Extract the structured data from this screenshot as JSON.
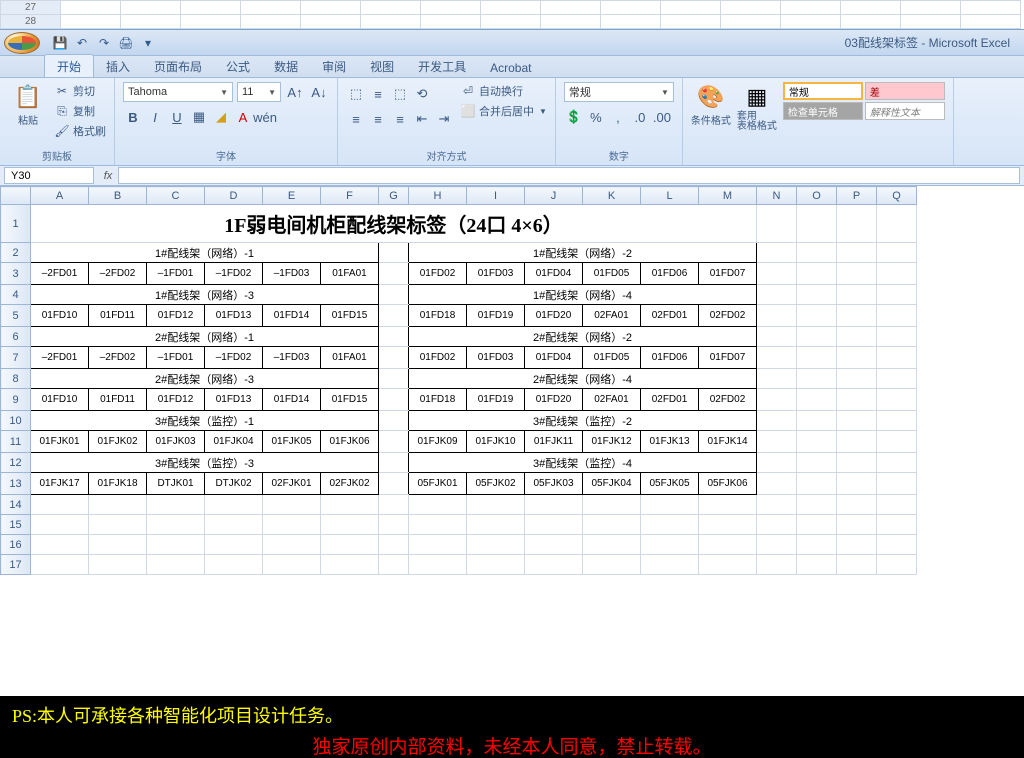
{
  "outer_rows": [
    "27",
    "28"
  ],
  "title": "03配线架标签 - Microsoft Excel",
  "tabs": [
    "开始",
    "插入",
    "页面布局",
    "公式",
    "数据",
    "审阅",
    "视图",
    "开发工具",
    "Acrobat"
  ],
  "active_tab": 0,
  "ribbon": {
    "clipboard": {
      "label": "剪贴板",
      "paste": "粘贴",
      "cut": "剪切",
      "copy": "复制",
      "painter": "格式刷"
    },
    "font": {
      "label": "字体",
      "name": "Tahoma",
      "size": "11"
    },
    "align": {
      "label": "对齐方式",
      "wrap": "自动换行",
      "merge": "合并后居中"
    },
    "number": {
      "label": "数字",
      "format": "常规"
    },
    "styles": {
      "cond": "条件格式",
      "table": "套用\n表格格式",
      "normal": "常规",
      "bad": "差",
      "check": "检查单元格",
      "explan": "解释性文本"
    }
  },
  "namebox": "Y30",
  "columns": [
    "A",
    "B",
    "C",
    "D",
    "E",
    "F",
    "G",
    "H",
    "I",
    "J",
    "K",
    "L",
    "M",
    "N",
    "O",
    "P",
    "Q"
  ],
  "sheet": {
    "title": "1F弱电间机柜配线架标签（24口 4×6）",
    "blocks": [
      {
        "left_header": "1#配线架（网络）-1",
        "left_cells": [
          "–2FD01",
          "–2FD02",
          "–1FD01",
          "–1FD02",
          "–1FD03",
          "01FA01"
        ],
        "right_header": "1#配线架（网络）-2",
        "right_cells": [
          "01FD02",
          "01FD03",
          "01FD04",
          "01FD05",
          "01FD06",
          "01FD07"
        ]
      },
      {
        "left_header": "1#配线架（网络）-3",
        "left_cells": [
          "01FD10",
          "01FD11",
          "01FD12",
          "01FD13",
          "01FD14",
          "01FD15"
        ],
        "right_header": "1#配线架（网络）-4",
        "right_cells": [
          "01FD18",
          "01FD19",
          "01FD20",
          "02FA01",
          "02FD01",
          "02FD02"
        ]
      },
      {
        "left_header": "2#配线架（网络）-1",
        "left_cells": [
          "–2FD01",
          "–2FD02",
          "–1FD01",
          "–1FD02",
          "–1FD03",
          "01FA01"
        ],
        "right_header": "2#配线架（网络）-2",
        "right_cells": [
          "01FD02",
          "01FD03",
          "01FD04",
          "01FD05",
          "01FD06",
          "01FD07"
        ]
      },
      {
        "left_header": "2#配线架（网络）-3",
        "left_cells": [
          "01FD10",
          "01FD11",
          "01FD12",
          "01FD13",
          "01FD14",
          "01FD15"
        ],
        "right_header": "2#配线架（网络）-4",
        "right_cells": [
          "01FD18",
          "01FD19",
          "01FD20",
          "02FA01",
          "02FD01",
          "02FD02"
        ]
      },
      {
        "left_header": "3#配线架（监控）-1",
        "left_cells": [
          "01FJK01",
          "01FJK02",
          "01FJK03",
          "01FJK04",
          "01FJK05",
          "01FJK06"
        ],
        "right_header": "3#配线架（监控）-2",
        "right_cells": [
          "01FJK09",
          "01FJK10",
          "01FJK11",
          "01FJK12",
          "01FJK13",
          "01FJK14"
        ]
      },
      {
        "left_header": "3#配线架（监控）-3",
        "left_cells": [
          "01FJK17",
          "01FJK18",
          "DTJK01",
          "DTJK02",
          "02FJK01",
          "02FJK02"
        ],
        "right_header": "3#配线架（监控）-4",
        "right_cells": [
          "05FJK01",
          "05FJK02",
          "05FJK03",
          "05FJK04",
          "05FJK05",
          "05FJK06"
        ]
      }
    ]
  },
  "footer": {
    "line1": "PS:本人可承接各种智能化项目设计任务。",
    "line2": "独家原创内部资料，未经本人同意，禁止转载。"
  }
}
